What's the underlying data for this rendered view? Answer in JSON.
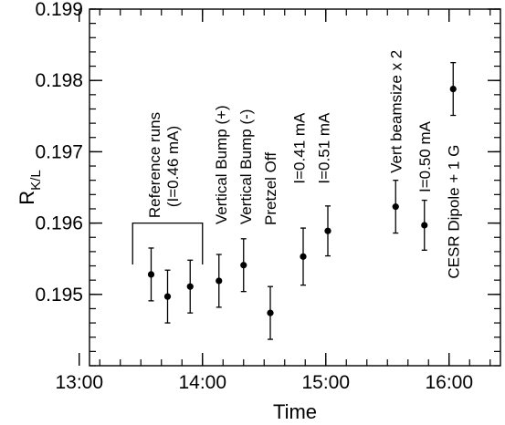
{
  "chart_data": {
    "type": "scatter",
    "xlabel": "Time",
    "ylabel": "R",
    "ylabel_subscript": "K/L",
    "xlim": [
      "13:05",
      "16:25"
    ],
    "ylim": [
      0.194,
      0.199
    ],
    "x_ticks": [
      "13:00",
      "14:00",
      "15:00",
      "16:00"
    ],
    "y_ticks": [
      "0.195",
      "0.196",
      "0.197",
      "0.198",
      "0.199"
    ],
    "grid": false,
    "points": [
      {
        "x": "13:35",
        "y": 0.19528,
        "err": 0.00037
      },
      {
        "x": "13:43",
        "y": 0.19497,
        "err": 0.00037
      },
      {
        "x": "13:54",
        "y": 0.19511,
        "err": 0.00037
      },
      {
        "x": "14:08",
        "y": 0.19519,
        "err": 0.00037
      },
      {
        "x": "14:20",
        "y": 0.19541,
        "err": 0.00037
      },
      {
        "x": "14:33",
        "y": 0.19474,
        "err": 0.00037
      },
      {
        "x": "14:49",
        "y": 0.19553,
        "err": 0.0004
      },
      {
        "x": "15:01",
        "y": 0.19589,
        "err": 0.00035
      },
      {
        "x": "15:34",
        "y": 0.19623,
        "err": 0.00037
      },
      {
        "x": "15:48",
        "y": 0.19597,
        "err": 0.00035
      },
      {
        "x": "16:02",
        "y": 0.19788,
        "err": 0.00037
      }
    ],
    "reference_bracket": {
      "x_start": "13:26",
      "x_end": "14:00",
      "y_top": 0.196,
      "y_bottom": 0.19542
    },
    "annotations": [
      {
        "lines": [
          "Reference runs",
          "(I=0.46 mA)"
        ],
        "x": "13:41",
        "y": 0.19607
      },
      {
        "lines": [
          "Vertical Bump (+)"
        ],
        "x": "14:09",
        "y": 0.19598
      },
      {
        "lines": [
          "Vertical Bump (-)"
        ],
        "x": "14:21",
        "y": 0.19598
      },
      {
        "lines": [
          "Pretzel Off"
        ],
        "x": "14:33",
        "y": 0.19597
      },
      {
        "lines": [
          "I=0.41 mA"
        ],
        "x": "14:47",
        "y": 0.19655
      },
      {
        "lines": [
          "I=0.51 mA"
        ],
        "x": "14:59",
        "y": 0.19655
      },
      {
        "lines": [
          "Vert beamsize x 2"
        ],
        "x": "15:34",
        "y": 0.1967
      },
      {
        "lines": [
          "I=0.50 mA"
        ],
        "x": "15:48",
        "y": 0.19643
      },
      {
        "lines": [
          "CESR Dipole + 1 G"
        ],
        "x": "16:02",
        "y": 0.19522
      }
    ]
  }
}
